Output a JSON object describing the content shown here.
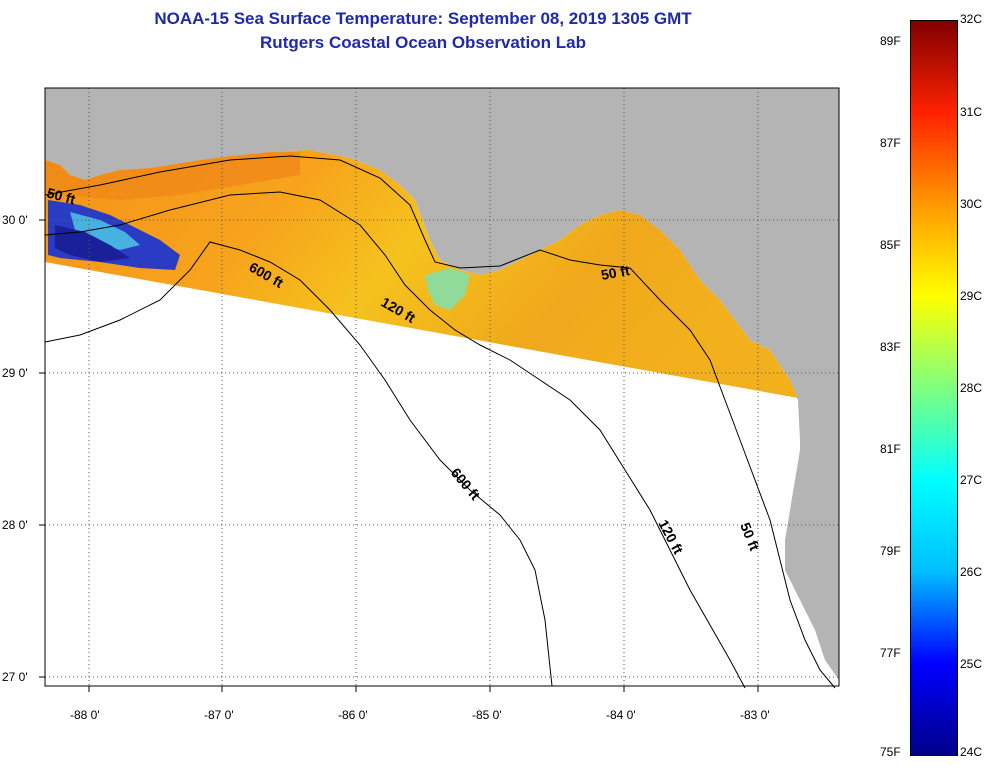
{
  "title": {
    "line1": "NOAA-15 Sea Surface Temperature:  September 08, 2019 1305 GMT",
    "line2": "Rutgers Coastal Ocean Observation Lab"
  },
  "map": {
    "lon_labels": [
      "-88 0'",
      "-87 0'",
      "-86 0'",
      "-85 0'",
      "-84 0'",
      "-83 0'"
    ],
    "lat_labels": [
      "30 0'",
      "29 0'",
      "28 0'",
      "27 0'"
    ],
    "contour_labels": [
      "50 ft",
      "600 ft",
      "120 ft",
      "50 ft",
      "600 ft",
      "120 ft",
      "50 ft"
    ],
    "colors": {
      "land": "#b4b4b4",
      "water_warm": "#f59a1c",
      "water_mid": "#f3c61b",
      "water_cool": "#2f3ec8",
      "missing": "#ffffff"
    }
  },
  "colorbar": {
    "fahrenheit_labels": [
      "89F",
      "87F",
      "85F",
      "83F",
      "81F",
      "79F",
      "77F",
      "75F"
    ],
    "celsius_labels": [
      "32C",
      "31C",
      "30C",
      "29C",
      "28C",
      "27C",
      "26C",
      "25C",
      "24C"
    ],
    "range_c": [
      24,
      32
    ],
    "colors": [
      "#00008b",
      "#0000ff",
      "#00bfff",
      "#00ffff",
      "#7fff7f",
      "#ffff00",
      "#ff9900",
      "#ff2200",
      "#800000"
    ]
  }
}
